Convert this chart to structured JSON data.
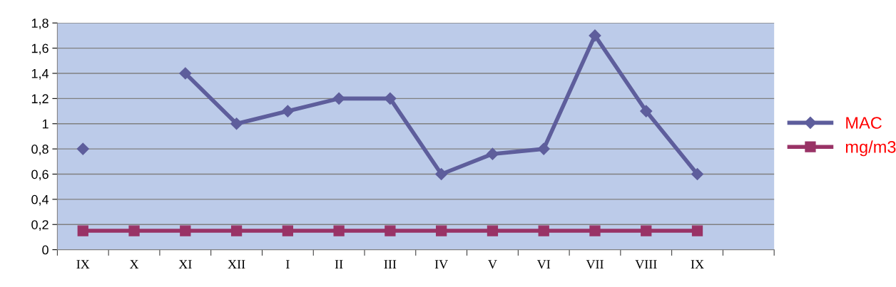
{
  "chart_data": {
    "type": "line",
    "categories": [
      "IX",
      "X",
      "XI",
      "XII",
      "I",
      "II",
      "III",
      "IV",
      "V",
      "VI",
      "VII",
      "VIII",
      "IX",
      null
    ],
    "series": [
      {
        "name": "MAC",
        "color": "#5e5e9c",
        "marker": "diamond",
        "values": [
          0.8,
          null,
          1.4,
          1.0,
          1.1,
          1.2,
          1.2,
          0.6,
          0.76,
          0.8,
          1.7,
          1.1,
          0.6,
          null
        ]
      },
      {
        "name": "mg/m3",
        "color": "#993366",
        "marker": "square",
        "values": [
          0.15,
          0.15,
          0.15,
          0.15,
          0.15,
          0.15,
          0.15,
          0.15,
          0.15,
          0.15,
          0.15,
          0.15,
          0.15,
          null
        ]
      }
    ],
    "ylim": [
      0,
      1.8
    ],
    "yticks": [
      0,
      {
        "value": 0.2,
        "label": "0,2"
      },
      {
        "value": 0.4,
        "label": "0,4"
      },
      {
        "value": 0.6,
        "label": "0,6"
      },
      {
        "value": 0.8,
        "label": "0,8"
      },
      1,
      {
        "value": 1.2,
        "label": "1,2"
      },
      {
        "value": 1.4,
        "label": "1,4"
      },
      {
        "value": 1.6,
        "label": "1,6"
      },
      {
        "value": 1.8,
        "label": "1,8"
      }
    ],
    "grid": "y",
    "legend": "right",
    "line_style": "solid"
  }
}
